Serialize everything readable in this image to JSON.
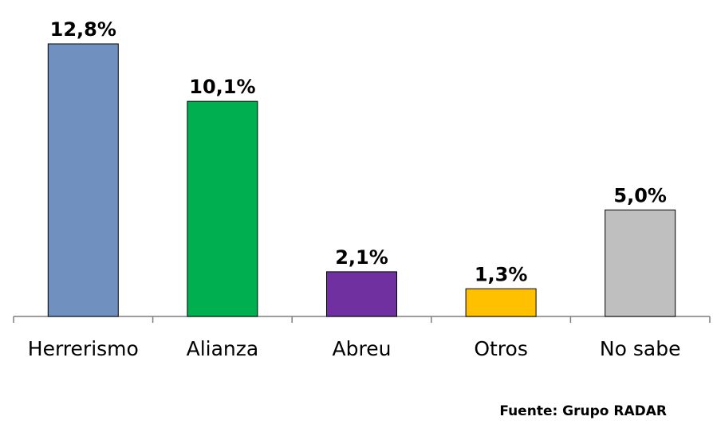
{
  "chart_data": {
    "type": "bar",
    "categories": [
      "Herrerismo",
      "Alianza",
      "Abreu",
      "Otros",
      "No sabe"
    ],
    "values": [
      12.8,
      10.1,
      2.1,
      1.3,
      5.0
    ],
    "value_labels": [
      "12,8%",
      "10,1%",
      "2,1%",
      "1,3%",
      "5,0%"
    ],
    "colors": [
      "#7090c0",
      "#00b050",
      "#7030a0",
      "#ffc000",
      "#bfbfbf"
    ],
    "ylim": [
      0,
      14
    ],
    "grid": false,
    "legend": "none",
    "xlabel": "",
    "ylabel": ""
  },
  "source": "Fuente: Grupo RADAR"
}
